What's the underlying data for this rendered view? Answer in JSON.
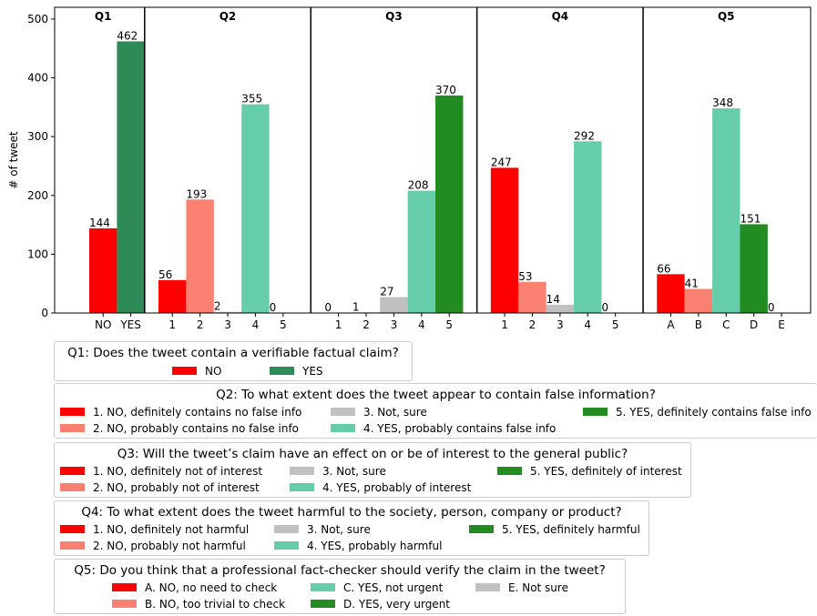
{
  "colors": {
    "no_definite": "#ff0000",
    "no_probable": "#fa8072",
    "not_sure": "#c0c0c0",
    "yes_probable": "#66cdaa",
    "yes_definite": "#228b22",
    "q1_yes": "#2e8b57"
  },
  "chart_data": {
    "type": "bar",
    "ylabel": "# of tweet",
    "ylim": [
      0,
      520
    ],
    "yticks": [
      0,
      100,
      200,
      300,
      400,
      500
    ],
    "panels": [
      {
        "id": "Q1",
        "title": "Q1",
        "categories": [
          "NO",
          "YES"
        ],
        "values": [
          144,
          462
        ],
        "colors": [
          "#ff0000",
          "#2e8b57"
        ]
      },
      {
        "id": "Q2",
        "title": "Q2",
        "categories": [
          "1",
          "2",
          "3",
          "4",
          "5"
        ],
        "values": [
          56,
          193,
          2,
          355,
          0
        ],
        "colors": [
          "#ff0000",
          "#fa8072",
          "#c0c0c0",
          "#66cdaa",
          "#228b22"
        ]
      },
      {
        "id": "Q3",
        "title": "Q3",
        "categories": [
          "1",
          "2",
          "3",
          "4",
          "5"
        ],
        "values": [
          0,
          1,
          27,
          208,
          370
        ],
        "colors": [
          "#ff0000",
          "#fa8072",
          "#c0c0c0",
          "#66cdaa",
          "#228b22"
        ]
      },
      {
        "id": "Q4",
        "title": "Q4",
        "categories": [
          "1",
          "2",
          "3",
          "4",
          "5"
        ],
        "values": [
          247,
          53,
          14,
          292,
          0
        ],
        "colors": [
          "#ff0000",
          "#fa8072",
          "#c0c0c0",
          "#66cdaa",
          "#228b22"
        ]
      },
      {
        "id": "Q5",
        "title": "Q5",
        "categories": [
          "A",
          "B",
          "C",
          "D",
          "E"
        ],
        "values": [
          66,
          41,
          348,
          151,
          0
        ],
        "colors": [
          "#ff0000",
          "#fa8072",
          "#66cdaa",
          "#228b22",
          "#c0c0c0"
        ]
      }
    ]
  },
  "legends": [
    {
      "id": "q1",
      "title": "Q1: Does the tweet contain a verifiable factual claim?",
      "items": [
        {
          "label": "NO",
          "color": "#ff0000"
        },
        {
          "label": "YES",
          "color": "#2e8b57"
        }
      ]
    },
    {
      "id": "q2",
      "title": "Q2: To what extent does the tweet appear to contain false information?",
      "items": [
        {
          "label": "1. NO, definitely contains no false info",
          "color": "#ff0000"
        },
        {
          "label": "2. NO, probably contains no false info",
          "color": "#fa8072"
        },
        {
          "label": "3. Not, sure",
          "color": "#c0c0c0"
        },
        {
          "label": "4. YES, probably contains false info",
          "color": "#66cdaa"
        },
        {
          "label": "5. YES, definitely contains false info",
          "color": "#228b22"
        }
      ]
    },
    {
      "id": "q3",
      "title": "Q3: Will the tweet’s claim have an effect on or be of interest to the general public?",
      "items": [
        {
          "label": "1. NO, definitely not of interest",
          "color": "#ff0000"
        },
        {
          "label": "2. NO, probably not of interest",
          "color": "#fa8072"
        },
        {
          "label": "3. Not, sure",
          "color": "#c0c0c0"
        },
        {
          "label": "4. YES, probably of interest",
          "color": "#66cdaa"
        },
        {
          "label": "5. YES, definitely of interest",
          "color": "#228b22"
        }
      ]
    },
    {
      "id": "q4",
      "title": "Q4: To what extent does the tweet harmful to the society, person, company or product?",
      "items": [
        {
          "label": "1. NO, definitely not harmful",
          "color": "#ff0000"
        },
        {
          "label": "2. NO, probably not harmful",
          "color": "#fa8072"
        },
        {
          "label": "3. Not, sure",
          "color": "#c0c0c0"
        },
        {
          "label": "4. YES, probably harmful",
          "color": "#66cdaa"
        },
        {
          "label": "5. YES, definitely harmful",
          "color": "#228b22"
        }
      ]
    },
    {
      "id": "q5",
      "title": "Q5: Do you think that a professional fact-checker should verify the claim in the tweet?",
      "items": [
        {
          "label": "A. NO, no need to check",
          "color": "#ff0000"
        },
        {
          "label": "B. NO, too trivial to check",
          "color": "#fa8072"
        },
        {
          "label": "C. YES, not urgent",
          "color": "#66cdaa"
        },
        {
          "label": "D. YES, very urgent",
          "color": "#228b22"
        },
        {
          "label": "E. Not sure",
          "color": "#c0c0c0"
        }
      ]
    }
  ]
}
